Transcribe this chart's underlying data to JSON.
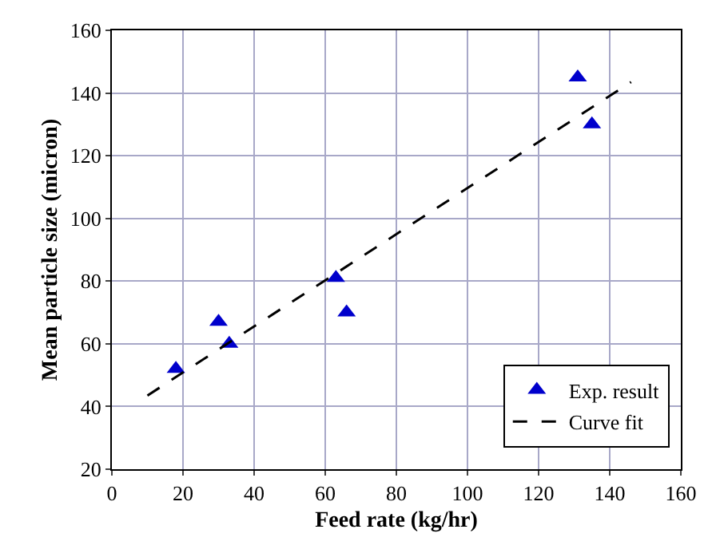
{
  "chart_data": {
    "type": "scatter",
    "xlabel": "Feed rate (kg/hr)",
    "ylabel": "Mean particle size (micron)",
    "xlim": [
      0,
      160
    ],
    "xticks": [
      0,
      20,
      40,
      60,
      80,
      100,
      120,
      140,
      160
    ],
    "ylim": [
      20,
      160
    ],
    "yticks": [
      20,
      40,
      60,
      80,
      100,
      120,
      140,
      160
    ],
    "grid": true,
    "legend": "bottom right",
    "series": [
      {
        "name": "Exp. result",
        "marker": "triangle",
        "color": "#0000cc",
        "x": [
          18,
          30,
          33,
          63,
          66,
          131,
          135
        ],
        "values": [
          52,
          67,
          60,
          81,
          70,
          145,
          130
        ]
      },
      {
        "name": "Curve fit",
        "type": "line",
        "marker": "none",
        "line_style": "dashed",
        "color": "#000000",
        "x": [
          10,
          146
        ],
        "values": [
          43.5,
          143.5
        ]
      }
    ]
  }
}
